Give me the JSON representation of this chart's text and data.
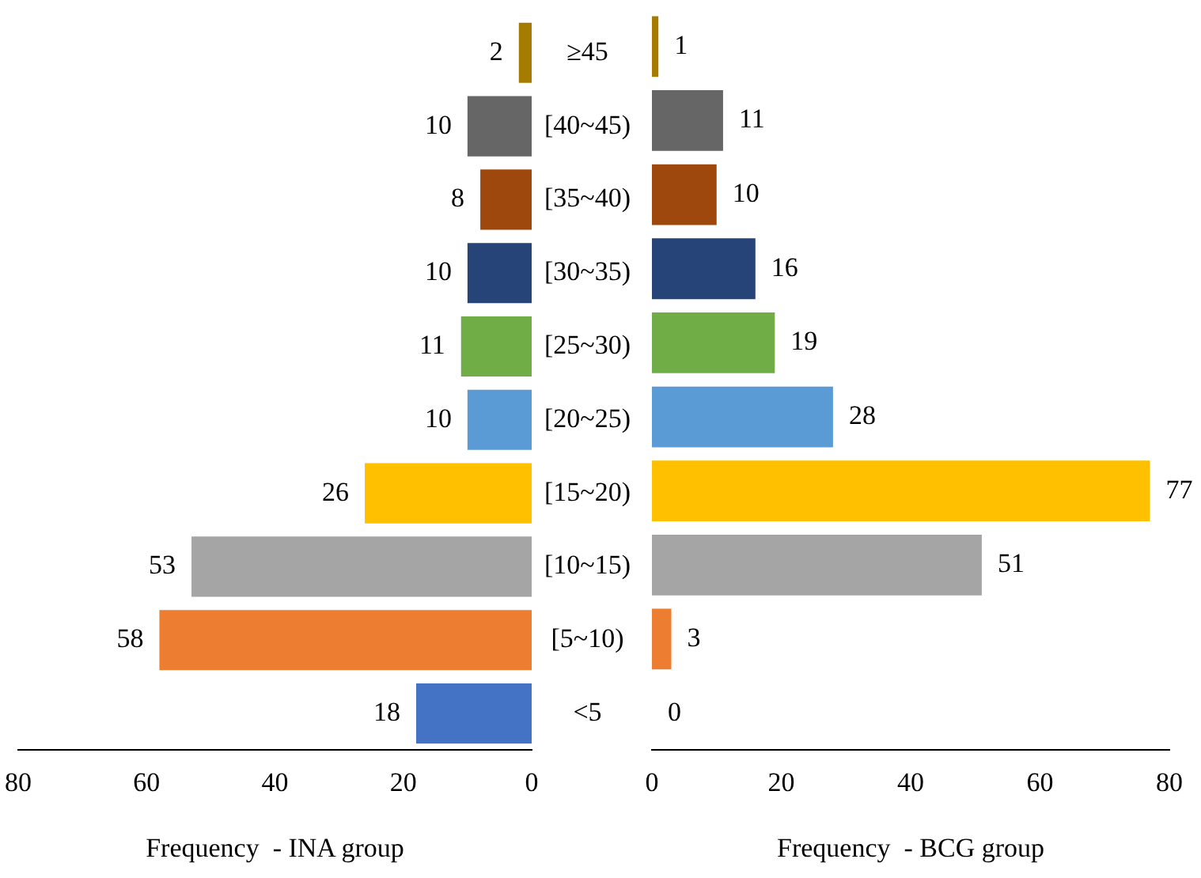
{
  "chart_data": [
    {
      "type": "bar",
      "orientation": "horizontal",
      "xlabel": "Frequency  - INA group",
      "categories": [
        "≥45",
        "[40~45)",
        "[35~40)",
        "[30~35)",
        "[25~30)",
        "[20~25)",
        "[15~20)",
        "[10~15)",
        "[5~10)",
        "<5"
      ],
      "values": [
        2,
        10,
        8,
        10,
        11,
        10,
        26,
        53,
        58,
        18
      ],
      "colors": [
        "#a67c00",
        "#666666",
        "#9e480e",
        "#264478",
        "#70ad47",
        "#5b9bd5",
        "#ffc000",
        "#a5a5a5",
        "#ed7d31",
        "#4472c4"
      ],
      "xlim": [
        80,
        0
      ],
      "xticks": [
        80,
        60,
        40,
        20,
        0
      ],
      "grid": false,
      "legend": false,
      "data_labels": true
    },
    {
      "type": "bar",
      "orientation": "horizontal",
      "xlabel": "Frequency  - BCG group",
      "categories": [
        null,
        null,
        null,
        null,
        null,
        null,
        null,
        null,
        null,
        null
      ],
      "values": [
        1,
        11,
        10,
        16,
        19,
        28,
        77,
        51,
        3,
        0
      ],
      "colors": [
        "#a67c00",
        "#666666",
        "#9e480e",
        "#264478",
        "#70ad47",
        "#5b9bd5",
        "#ffc000",
        "#a5a5a5",
        "#ed7d31",
        "#4472c4"
      ],
      "xlim": [
        0,
        80
      ],
      "xticks": [
        0,
        20,
        40,
        60,
        80
      ],
      "grid": false,
      "legend": false,
      "data_labels": true,
      "tick_labels": "x"
    }
  ]
}
